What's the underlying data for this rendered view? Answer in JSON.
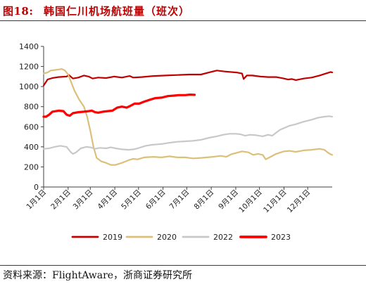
{
  "header": {
    "figure_label": "图18:",
    "title": "韩国仁川机场航班量（班次）"
  },
  "footer": {
    "source": "资料来源：FlightAware，浙商证券研究所"
  },
  "colors": {
    "title_red": "#c00000",
    "rule_red": "#c00000",
    "series_2019": "#c00000",
    "series_2020": "#dcc07a",
    "series_2022": "#c8c8c8",
    "series_2023": "#ff0000"
  },
  "chart_data": {
    "type": "line",
    "title": "",
    "xlabel": "",
    "ylabel": "",
    "ylim": [
      0,
      1400
    ],
    "yticks": [
      "0",
      "200",
      "400",
      "600",
      "800",
      "1000",
      "1200",
      "1400"
    ],
    "xlim": [
      1,
      366
    ],
    "x_tick_labels": [
      "1月1日",
      "2月1日",
      "3月1日",
      "4月1日",
      "5月1日",
      "6月1日",
      "7月1日",
      "8月1日",
      "9月1日",
      "10月1日",
      "11月1日",
      "12月1日"
    ],
    "x_tick_days": [
      1,
      32,
      60,
      91,
      121,
      152,
      182,
      213,
      244,
      274,
      305,
      335
    ],
    "grid": false,
    "legend_position": "bottom",
    "series": [
      {
        "name": "2019",
        "color": "#c00000",
        "width": 2.2,
        "points": [
          [
            1,
            1010
          ],
          [
            6,
            1070
          ],
          [
            12,
            1085
          ],
          [
            20,
            1095
          ],
          [
            30,
            1100
          ],
          [
            33,
            1115
          ],
          [
            38,
            1080
          ],
          [
            45,
            1090
          ],
          [
            52,
            1110
          ],
          [
            58,
            1100
          ],
          [
            63,
            1080
          ],
          [
            70,
            1090
          ],
          [
            80,
            1085
          ],
          [
            90,
            1100
          ],
          [
            100,
            1090
          ],
          [
            110,
            1105
          ],
          [
            114,
            1090
          ],
          [
            125,
            1095
          ],
          [
            140,
            1105
          ],
          [
            155,
            1110
          ],
          [
            170,
            1115
          ],
          [
            185,
            1120
          ],
          [
            200,
            1120
          ],
          [
            210,
            1140
          ],
          [
            220,
            1160
          ],
          [
            230,
            1150
          ],
          [
            245,
            1140
          ],
          [
            252,
            1130
          ],
          [
            254,
            1075
          ],
          [
            258,
            1110
          ],
          [
            265,
            1110
          ],
          [
            275,
            1100
          ],
          [
            285,
            1095
          ],
          [
            295,
            1095
          ],
          [
            305,
            1080
          ],
          [
            310,
            1070
          ],
          [
            315,
            1075
          ],
          [
            320,
            1065
          ],
          [
            330,
            1080
          ],
          [
            340,
            1090
          ],
          [
            350,
            1110
          ],
          [
            358,
            1130
          ],
          [
            364,
            1145
          ],
          [
            366,
            1140
          ]
        ]
      },
      {
        "name": "2020",
        "color": "#dcc07a",
        "width": 2.2,
        "points": [
          [
            1,
            1130
          ],
          [
            6,
            1140
          ],
          [
            10,
            1160
          ],
          [
            15,
            1165
          ],
          [
            20,
            1170
          ],
          [
            24,
            1175
          ],
          [
            28,
            1160
          ],
          [
            32,
            1120
          ],
          [
            36,
            1040
          ],
          [
            40,
            960
          ],
          [
            46,
            870
          ],
          [
            52,
            800
          ],
          [
            56,
            700
          ],
          [
            60,
            560
          ],
          [
            64,
            400
          ],
          [
            68,
            290
          ],
          [
            74,
            255
          ],
          [
            80,
            240
          ],
          [
            86,
            220
          ],
          [
            92,
            220
          ],
          [
            100,
            240
          ],
          [
            108,
            265
          ],
          [
            114,
            280
          ],
          [
            120,
            275
          ],
          [
            128,
            295
          ],
          [
            140,
            300
          ],
          [
            150,
            295
          ],
          [
            160,
            305
          ],
          [
            170,
            295
          ],
          [
            180,
            295
          ],
          [
            190,
            285
          ],
          [
            200,
            290
          ],
          [
            215,
            300
          ],
          [
            225,
            310
          ],
          [
            232,
            300
          ],
          [
            238,
            325
          ],
          [
            245,
            340
          ],
          [
            252,
            355
          ],
          [
            260,
            345
          ],
          [
            266,
            320
          ],
          [
            272,
            330
          ],
          [
            278,
            320
          ],
          [
            282,
            275
          ],
          [
            288,
            300
          ],
          [
            295,
            330
          ],
          [
            305,
            355
          ],
          [
            312,
            360
          ],
          [
            320,
            350
          ],
          [
            330,
            365
          ],
          [
            340,
            370
          ],
          [
            350,
            380
          ],
          [
            356,
            370
          ],
          [
            360,
            345
          ],
          [
            364,
            325
          ],
          [
            366,
            320
          ]
        ]
      },
      {
        "name": "2022",
        "color": "#c8c8c8",
        "width": 2.2,
        "points": [
          [
            1,
            380
          ],
          [
            8,
            385
          ],
          [
            15,
            400
          ],
          [
            22,
            410
          ],
          [
            30,
            400
          ],
          [
            35,
            350
          ],
          [
            38,
            330
          ],
          [
            42,
            345
          ],
          [
            48,
            385
          ],
          [
            55,
            400
          ],
          [
            60,
            395
          ],
          [
            66,
            380
          ],
          [
            72,
            390
          ],
          [
            80,
            385
          ],
          [
            86,
            395
          ],
          [
            92,
            385
          ],
          [
            100,
            375
          ],
          [
            108,
            370
          ],
          [
            115,
            375
          ],
          [
            120,
            385
          ],
          [
            124,
            395
          ],
          [
            130,
            410
          ],
          [
            138,
            420
          ],
          [
            145,
            425
          ],
          [
            152,
            430
          ],
          [
            160,
            440
          ],
          [
            170,
            450
          ],
          [
            180,
            455
          ],
          [
            190,
            460
          ],
          [
            200,
            470
          ],
          [
            210,
            490
          ],
          [
            220,
            505
          ],
          [
            228,
            520
          ],
          [
            236,
            530
          ],
          [
            244,
            530
          ],
          [
            250,
            525
          ],
          [
            256,
            510
          ],
          [
            262,
            520
          ],
          [
            270,
            515
          ],
          [
            278,
            505
          ],
          [
            285,
            520
          ],
          [
            290,
            510
          ],
          [
            295,
            540
          ],
          [
            300,
            570
          ],
          [
            306,
            590
          ],
          [
            312,
            610
          ],
          [
            320,
            625
          ],
          [
            330,
            650
          ],
          [
            340,
            670
          ],
          [
            348,
            690
          ],
          [
            356,
            700
          ],
          [
            362,
            705
          ],
          [
            366,
            700
          ]
        ]
      },
      {
        "name": "2023",
        "color": "#ff0000",
        "width": 3.2,
        "points": [
          [
            1,
            700
          ],
          [
            4,
            700
          ],
          [
            8,
            720
          ],
          [
            12,
            750
          ],
          [
            20,
            760
          ],
          [
            26,
            755
          ],
          [
            30,
            720
          ],
          [
            34,
            710
          ],
          [
            38,
            735
          ],
          [
            45,
            745
          ],
          [
            52,
            750
          ],
          [
            58,
            755
          ],
          [
            62,
            760
          ],
          [
            66,
            745
          ],
          [
            70,
            740
          ],
          [
            76,
            750
          ],
          [
            82,
            755
          ],
          [
            88,
            760
          ],
          [
            94,
            790
          ],
          [
            100,
            800
          ],
          [
            106,
            790
          ],
          [
            110,
            805
          ],
          [
            116,
            830
          ],
          [
            122,
            830
          ],
          [
            128,
            850
          ],
          [
            136,
            870
          ],
          [
            142,
            885
          ],
          [
            150,
            890
          ],
          [
            158,
            905
          ],
          [
            166,
            910
          ],
          [
            172,
            915
          ],
          [
            180,
            915
          ],
          [
            186,
            920
          ],
          [
            192,
            918
          ]
        ]
      }
    ]
  }
}
